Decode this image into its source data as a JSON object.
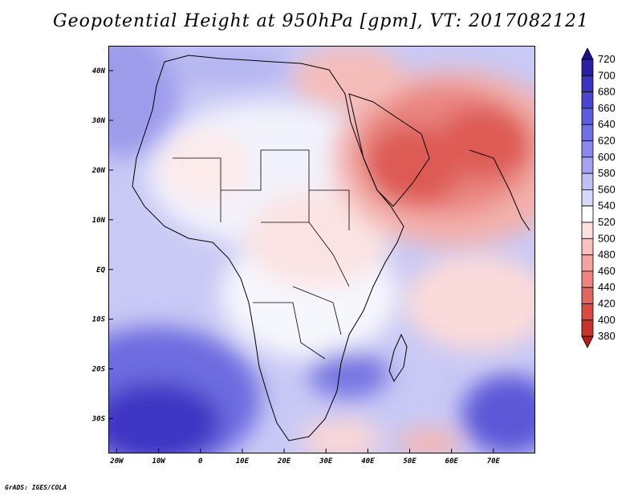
{
  "title": "Geopotential Height at 950hPa [gpm], VT: 2017082121",
  "footer": "GrADS: IGES/COLA",
  "map": {
    "region": "Africa, Arabian Peninsula, South Asia",
    "lon_range": [
      -22,
      80
    ],
    "lat_range": [
      -37,
      45
    ],
    "lon_ticks": [
      {
        "lon": -20,
        "label": "20W"
      },
      {
        "lon": -10,
        "label": "10W"
      },
      {
        "lon": 0,
        "label": "0"
      },
      {
        "lon": 10,
        "label": "10E"
      },
      {
        "lon": 20,
        "label": "20E"
      },
      {
        "lon": 30,
        "label": "30E"
      },
      {
        "lon": 40,
        "label": "40E"
      },
      {
        "lon": 50,
        "label": "50E"
      },
      {
        "lon": 60,
        "label": "60E"
      },
      {
        "lon": 70,
        "label": "70E"
      }
    ],
    "lat_ticks": [
      {
        "lat": 40,
        "label": "40N"
      },
      {
        "lat": 30,
        "label": "30N"
      },
      {
        "lat": 20,
        "label": "20N"
      },
      {
        "lat": 10,
        "label": "10N"
      },
      {
        "lat": 0,
        "label": "EQ"
      },
      {
        "lat": -10,
        "label": "10S"
      },
      {
        "lat": -20,
        "label": "20S"
      },
      {
        "lat": -30,
        "label": "30S"
      }
    ]
  },
  "colorbar": {
    "levels": [
      {
        "label": "720",
        "color": "#1c0f8a"
      },
      {
        "label": "700",
        "color": "#2a1fa6"
      },
      {
        "label": "680",
        "color": "#3a32c0"
      },
      {
        "label": "660",
        "color": "#4a46d2"
      },
      {
        "label": "640",
        "color": "#5d5ddd"
      },
      {
        "label": "620",
        "color": "#7271e4"
      },
      {
        "label": "600",
        "color": "#8a89ea"
      },
      {
        "label": "580",
        "color": "#a3a3f0"
      },
      {
        "label": "560",
        "color": "#bebff5"
      },
      {
        "label": "540",
        "color": "#d8d9fa"
      },
      {
        "label": "520",
        "color": "#ffffff"
      },
      {
        "label": "500",
        "color": "#fde0de"
      },
      {
        "label": "480",
        "color": "#f9c2bf"
      },
      {
        "label": "460",
        "color": "#f3a29f"
      },
      {
        "label": "440",
        "color": "#ec8580"
      },
      {
        "label": "420",
        "color": "#e46660"
      },
      {
        "label": "400",
        "color": "#d84a43"
      },
      {
        "label": "380",
        "color": "#c93229"
      },
      {
        "label": "",
        "color": "#b41e18"
      }
    ]
  }
}
